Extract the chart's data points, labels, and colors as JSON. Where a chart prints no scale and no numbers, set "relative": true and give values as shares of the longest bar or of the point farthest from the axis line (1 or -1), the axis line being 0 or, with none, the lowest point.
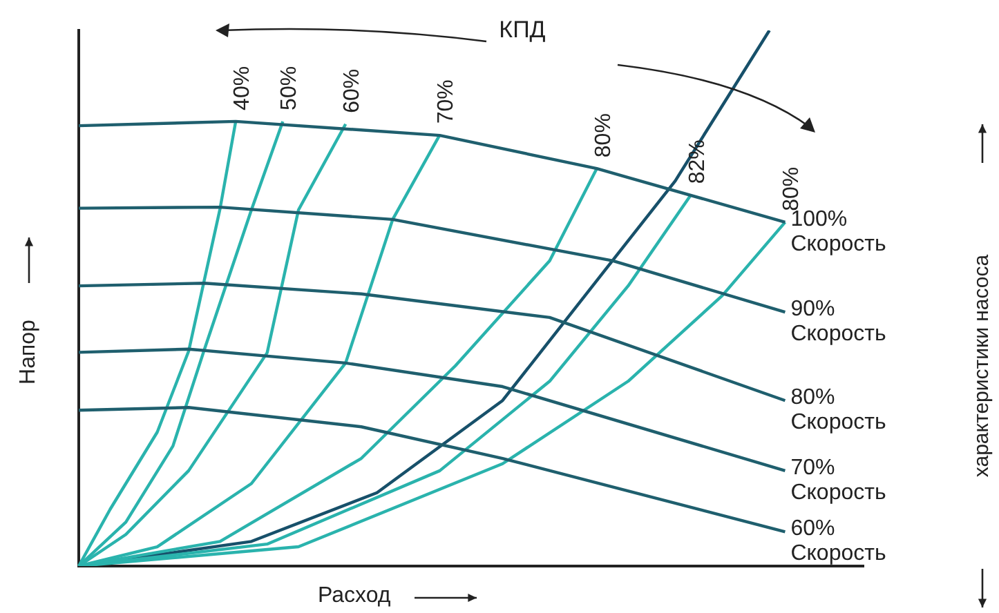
{
  "chart_data": {
    "type": "line",
    "relative": true,
    "xlabel": "Расход",
    "ylabel": "Напор",
    "annotations": [
      "КПД",
      "характеристики насоса"
    ],
    "grid": false,
    "legend": false,
    "marker": "none",
    "categories": [
      null,
      null,
      null,
      null,
      null,
      null,
      null,
      null,
      null,
      null,
      null,
      null,
      null,
      null,
      null,
      null,
      null,
      null,
      null,
      null,
      null,
      null,
      null,
      null,
      null,
      null,
      null,
      null,
      null,
      null,
      null,
      null,
      null,
      null,
      null,
      null,
      null,
      null,
      null,
      null,
      null,
      null,
      null,
      null,
      null,
      null,
      null,
      null,
      null,
      null,
      null
    ],
    "series": [
      {
        "name": "100% Скорость",
        "color": "#1f5f6e",
        "values": [
          0.822,
          null,
          null,
          null,
          null,
          null,
          null,
          null,
          null,
          null,
          0.83,
          null,
          null,
          null,
          null,
          null,
          null,
          null,
          null,
          null,
          null,
          null,
          null,
          0.804,
          null,
          null,
          null,
          null,
          null,
          null,
          null,
          null,
          null,
          0.742,
          null,
          null,
          null,
          null,
          null,
          null,
          null,
          null,
          null,
          null,
          null,
          0.642,
          null,
          null,
          null,
          null,
          null
        ]
      },
      {
        "name": "90% Скорость",
        "color": "#1f5f6e",
        "values": [
          0.668,
          null,
          null,
          null,
          null,
          null,
          null,
          null,
          null,
          0.67,
          null,
          null,
          null,
          null,
          null,
          null,
          null,
          null,
          null,
          null,
          0.647,
          null,
          null,
          null,
          null,
          null,
          null,
          null,
          null,
          null,
          null,
          null,
          null,
          null,
          0.57,
          null,
          null,
          null,
          null,
          null,
          null,
          null,
          null,
          null,
          null,
          0.474,
          null,
          null,
          null,
          null,
          null
        ]
      },
      {
        "name": "80% Скорость",
        "color": "#1f5f6e",
        "values": [
          0.523,
          null,
          null,
          null,
          null,
          null,
          null,
          null,
          0.528,
          null,
          null,
          null,
          null,
          null,
          null,
          null,
          null,
          null,
          0.508,
          null,
          null,
          null,
          null,
          null,
          null,
          null,
          null,
          null,
          null,
          null,
          0.464,
          null,
          null,
          null,
          null,
          null,
          null,
          null,
          null,
          null,
          null,
          null,
          null,
          null,
          null,
          0.309,
          null,
          null,
          null,
          null,
          null
        ]
      },
      {
        "name": "70% Скорость",
        "color": "#1f5f6e",
        "values": [
          0.399,
          null,
          null,
          null,
          null,
          null,
          null,
          0.405,
          null,
          null,
          null,
          null,
          null,
          null,
          null,
          null,
          null,
          0.379,
          null,
          null,
          null,
          null,
          null,
          null,
          null,
          null,
          null,
          0.335,
          null,
          null,
          null,
          null,
          null,
          null,
          null,
          null,
          null,
          null,
          null,
          null,
          null,
          null,
          null,
          null,
          null,
          0.178,
          null,
          null,
          null,
          null,
          null
        ]
      },
      {
        "name": "60% Скорость",
        "color": "#1f5f6e",
        "values": [
          0.291,
          null,
          null,
          null,
          null,
          null,
          null,
          0.296,
          null,
          null,
          null,
          null,
          null,
          null,
          null,
          null,
          null,
          null,
          0.26,
          null,
          null,
          null,
          null,
          null,
          null,
          null,
          null,
          0.201,
          null,
          null,
          null,
          null,
          null,
          null,
          null,
          null,
          null,
          null,
          null,
          null,
          null,
          null,
          null,
          null,
          null,
          0.064,
          null,
          null,
          null,
          null,
          null
        ]
      },
      {
        "name": "40%",
        "color": "#2ab3ad",
        "values": [
          0,
          null,
          0.106,
          null,
          null,
          0.25,
          null,
          0.401,
          null,
          0.667,
          0.83,
          null,
          null,
          null,
          null,
          null,
          null,
          null,
          null,
          null,
          null,
          null,
          null,
          null,
          null,
          null,
          null,
          null,
          null,
          null,
          null,
          null,
          null,
          null,
          null,
          null,
          null,
          null,
          null,
          null,
          null,
          null,
          null,
          null,
          null,
          null,
          null,
          null,
          null,
          null,
          null
        ]
      },
      {
        "name": "50%",
        "color": "#2ab3ad",
        "values": [
          0,
          null,
          null,
          0.082,
          null,
          null,
          0.224,
          null,
          0.404,
          null,
          null,
          0.665,
          null,
          0.83,
          null,
          null,
          null,
          null,
          null,
          null,
          null,
          null,
          null,
          null,
          null,
          null,
          null,
          null,
          null,
          null,
          null,
          null,
          null,
          null,
          null,
          null,
          null,
          null,
          null,
          null,
          null,
          null,
          null,
          null,
          null,
          null,
          null,
          null,
          null,
          null,
          null
        ]
      },
      {
        "name": "60%",
        "color": "#2ab3ad",
        "values": [
          0,
          null,
          null,
          0.059,
          null,
          null,
          null,
          0.178,
          null,
          null,
          null,
          null,
          0.398,
          null,
          0.665,
          null,
          null,
          0.825,
          null,
          null,
          null,
          null,
          null,
          null,
          null,
          null,
          null,
          null,
          null,
          null,
          null,
          null,
          null,
          null,
          null,
          null,
          null,
          null,
          null,
          null,
          null,
          null,
          null,
          null,
          null,
          null,
          null,
          null,
          null,
          null,
          null
        ]
      },
      {
        "name": "70%",
        "color": "#2ab3ad",
        "values": [
          0,
          null,
          null,
          null,
          null,
          0.036,
          null,
          null,
          null,
          null,
          null,
          0.154,
          null,
          null,
          null,
          null,
          null,
          0.379,
          null,
          null,
          0.647,
          null,
          null,
          0.805,
          null,
          null,
          null,
          null,
          null,
          null,
          null,
          null,
          null,
          null,
          null,
          null,
          null,
          null,
          null,
          null,
          null,
          null,
          null,
          null,
          null,
          null,
          null,
          null,
          null,
          null,
          null
        ]
      },
      {
        "name": "80%",
        "color": "#2ab3ad",
        "values": [
          0,
          null,
          null,
          null,
          null,
          null,
          null,
          null,
          null,
          0.046,
          null,
          null,
          null,
          null,
          null,
          null,
          null,
          null,
          0.201,
          null,
          null,
          null,
          null,
          null,
          0.374,
          null,
          null,
          null,
          null,
          null,
          0.57,
          null,
          null,
          0.742,
          null,
          null,
          null,
          null,
          null,
          null,
          null,
          null,
          null,
          null,
          null,
          null,
          null,
          null,
          null,
          null,
          null
        ]
      },
      {
        "name": "82%",
        "color": "#2ab3ad",
        "values": [
          0,
          null,
          null,
          null,
          null,
          null,
          null,
          null,
          null,
          null,
          null,
          null,
          0.041,
          null,
          null,
          null,
          null,
          null,
          null,
          null,
          null,
          null,
          null,
          0.178,
          null,
          null,
          null,
          null,
          null,
          null,
          0.345,
          null,
          null,
          null,
          null,
          0.523,
          null,
          null,
          null,
          0.693,
          null,
          null,
          null,
          null,
          null,
          null,
          null,
          null,
          null,
          null,
          null
        ]
      },
      {
        "name": "80%",
        "color": "#2ab3ad",
        "values": [
          0,
          null,
          null,
          null,
          null,
          null,
          null,
          null,
          null,
          null,
          null,
          null,
          null,
          null,
          0.036,
          null,
          null,
          null,
          null,
          null,
          null,
          null,
          null,
          null,
          null,
          null,
          null,
          0.191,
          null,
          null,
          null,
          null,
          null,
          null,
          null,
          0.345,
          null,
          null,
          null,
          null,
          null,
          0.505,
          null,
          null,
          null,
          0.642,
          null,
          null,
          null,
          null,
          null
        ]
      },
      {
        "color": "#17506a",
        "values": [
          0,
          null,
          null,
          null,
          null,
          null,
          null,
          null,
          null,
          null,
          null,
          0.046,
          null,
          null,
          null,
          null,
          null,
          null,
          null,
          0.137,
          null,
          null,
          null,
          null,
          null,
          null,
          null,
          0.309,
          null,
          null,
          null,
          null,
          null,
          null,
          0.57,
          null,
          null,
          null,
          0.719,
          null,
          null,
          null,
          null,
          null,
          1,
          null,
          null,
          null,
          null,
          null,
          null
        ]
      }
    ]
  }
}
